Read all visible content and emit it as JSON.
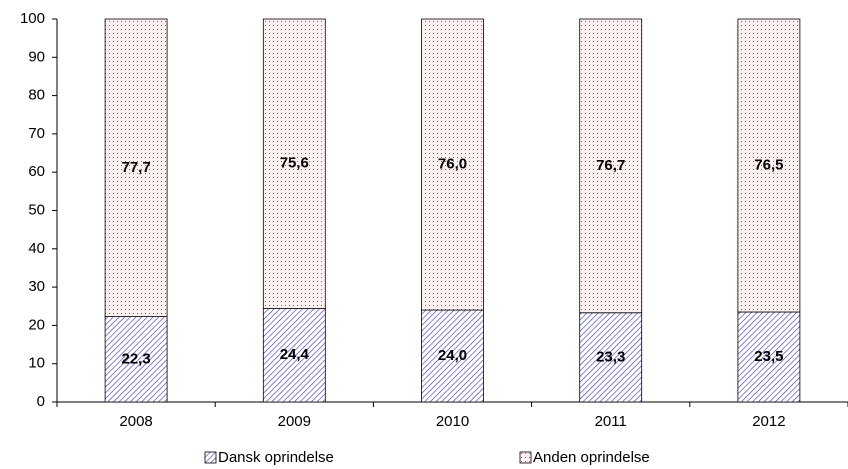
{
  "chart_data": {
    "type": "stacked_bar",
    "categories": [
      "2008",
      "2009",
      "2010",
      "2011",
      "2012"
    ],
    "series": [
      {
        "name": "Dansk oprindelse",
        "color": "#3333aa",
        "values": [
          22.3,
          24.4,
          24.0,
          23.3,
          23.5
        ],
        "value_labels": [
          "22,3",
          "24,4",
          "24,0",
          "23,3",
          "23,5"
        ]
      },
      {
        "name": "Anden oprindelse",
        "color": "#d04040",
        "values": [
          77.7,
          75.6,
          76.0,
          76.7,
          76.5
        ],
        "value_labels": [
          "77,7",
          "75,6",
          "76,0",
          "76,7",
          "76,5"
        ]
      }
    ],
    "ylim": [
      0,
      100
    ],
    "yticks": [
      0,
      10,
      20,
      30,
      40,
      50,
      60,
      70,
      80,
      90,
      100
    ],
    "legend": "bottom"
  }
}
